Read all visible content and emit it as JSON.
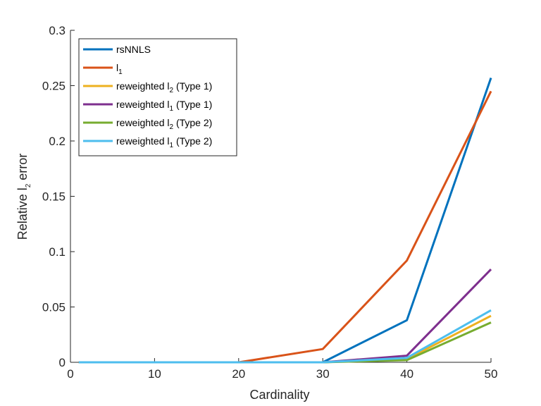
{
  "chart_data": {
    "type": "line",
    "xlabel": "Cardinality",
    "ylabel": {
      "main": "Relative l",
      "sub": "2",
      "tail": " error"
    },
    "xlim": [
      0,
      50
    ],
    "ylim": [
      0,
      0.3
    ],
    "xticks": [
      0,
      10,
      20,
      30,
      40,
      50
    ],
    "xtick_labels": [
      "0",
      "10",
      "20",
      "30",
      "40",
      "50"
    ],
    "yticks": [
      0,
      0.05,
      0.1,
      0.15,
      0.2,
      0.25,
      0.3
    ],
    "ytick_labels": [
      "0",
      "0.05",
      "0.1",
      "0.15",
      "0.2",
      "0.25",
      "0.3"
    ],
    "grid": false,
    "legend_position": "top-left",
    "x": [
      1,
      10,
      20,
      30,
      40,
      50
    ],
    "series": [
      {
        "name": "rsNNLS",
        "name_main": "rsNNLS",
        "name_sub": "",
        "name_tail": "",
        "color": "#0072BD",
        "values": [
          0,
          0,
          0,
          0,
          0.038,
          0.257
        ]
      },
      {
        "name": "l1",
        "name_main": "l",
        "name_sub": "1",
        "name_tail": "",
        "color": "#D95319",
        "values": [
          0,
          0,
          0,
          0.012,
          0.092,
          0.245
        ]
      },
      {
        "name": "reweighted l2 (Type 1)",
        "name_main": "reweighted l",
        "name_sub": "2",
        "name_tail": " (Type 1)",
        "color": "#EDB120",
        "values": [
          0,
          0,
          0,
          0,
          0.003,
          0.042
        ]
      },
      {
        "name": "reweighted l1 (Type 1)",
        "name_main": "reweighted l",
        "name_sub": "1",
        "name_tail": " (Type 1)",
        "color": "#7E2F8E",
        "values": [
          0,
          0,
          0,
          0,
          0.006,
          0.084
        ]
      },
      {
        "name": "reweighted l2 (Type 2)",
        "name_main": "reweighted l",
        "name_sub": "2",
        "name_tail": " (Type 2)",
        "color": "#77AC30",
        "values": [
          0,
          0,
          0,
          0,
          0.002,
          0.036
        ]
      },
      {
        "name": "reweighted l1 (Type 2)",
        "name_main": "reweighted l",
        "name_sub": "1",
        "name_tail": " (Type 2)",
        "color": "#4DBEEE",
        "values": [
          0,
          0,
          0,
          0,
          0.004,
          0.047
        ]
      }
    ]
  }
}
